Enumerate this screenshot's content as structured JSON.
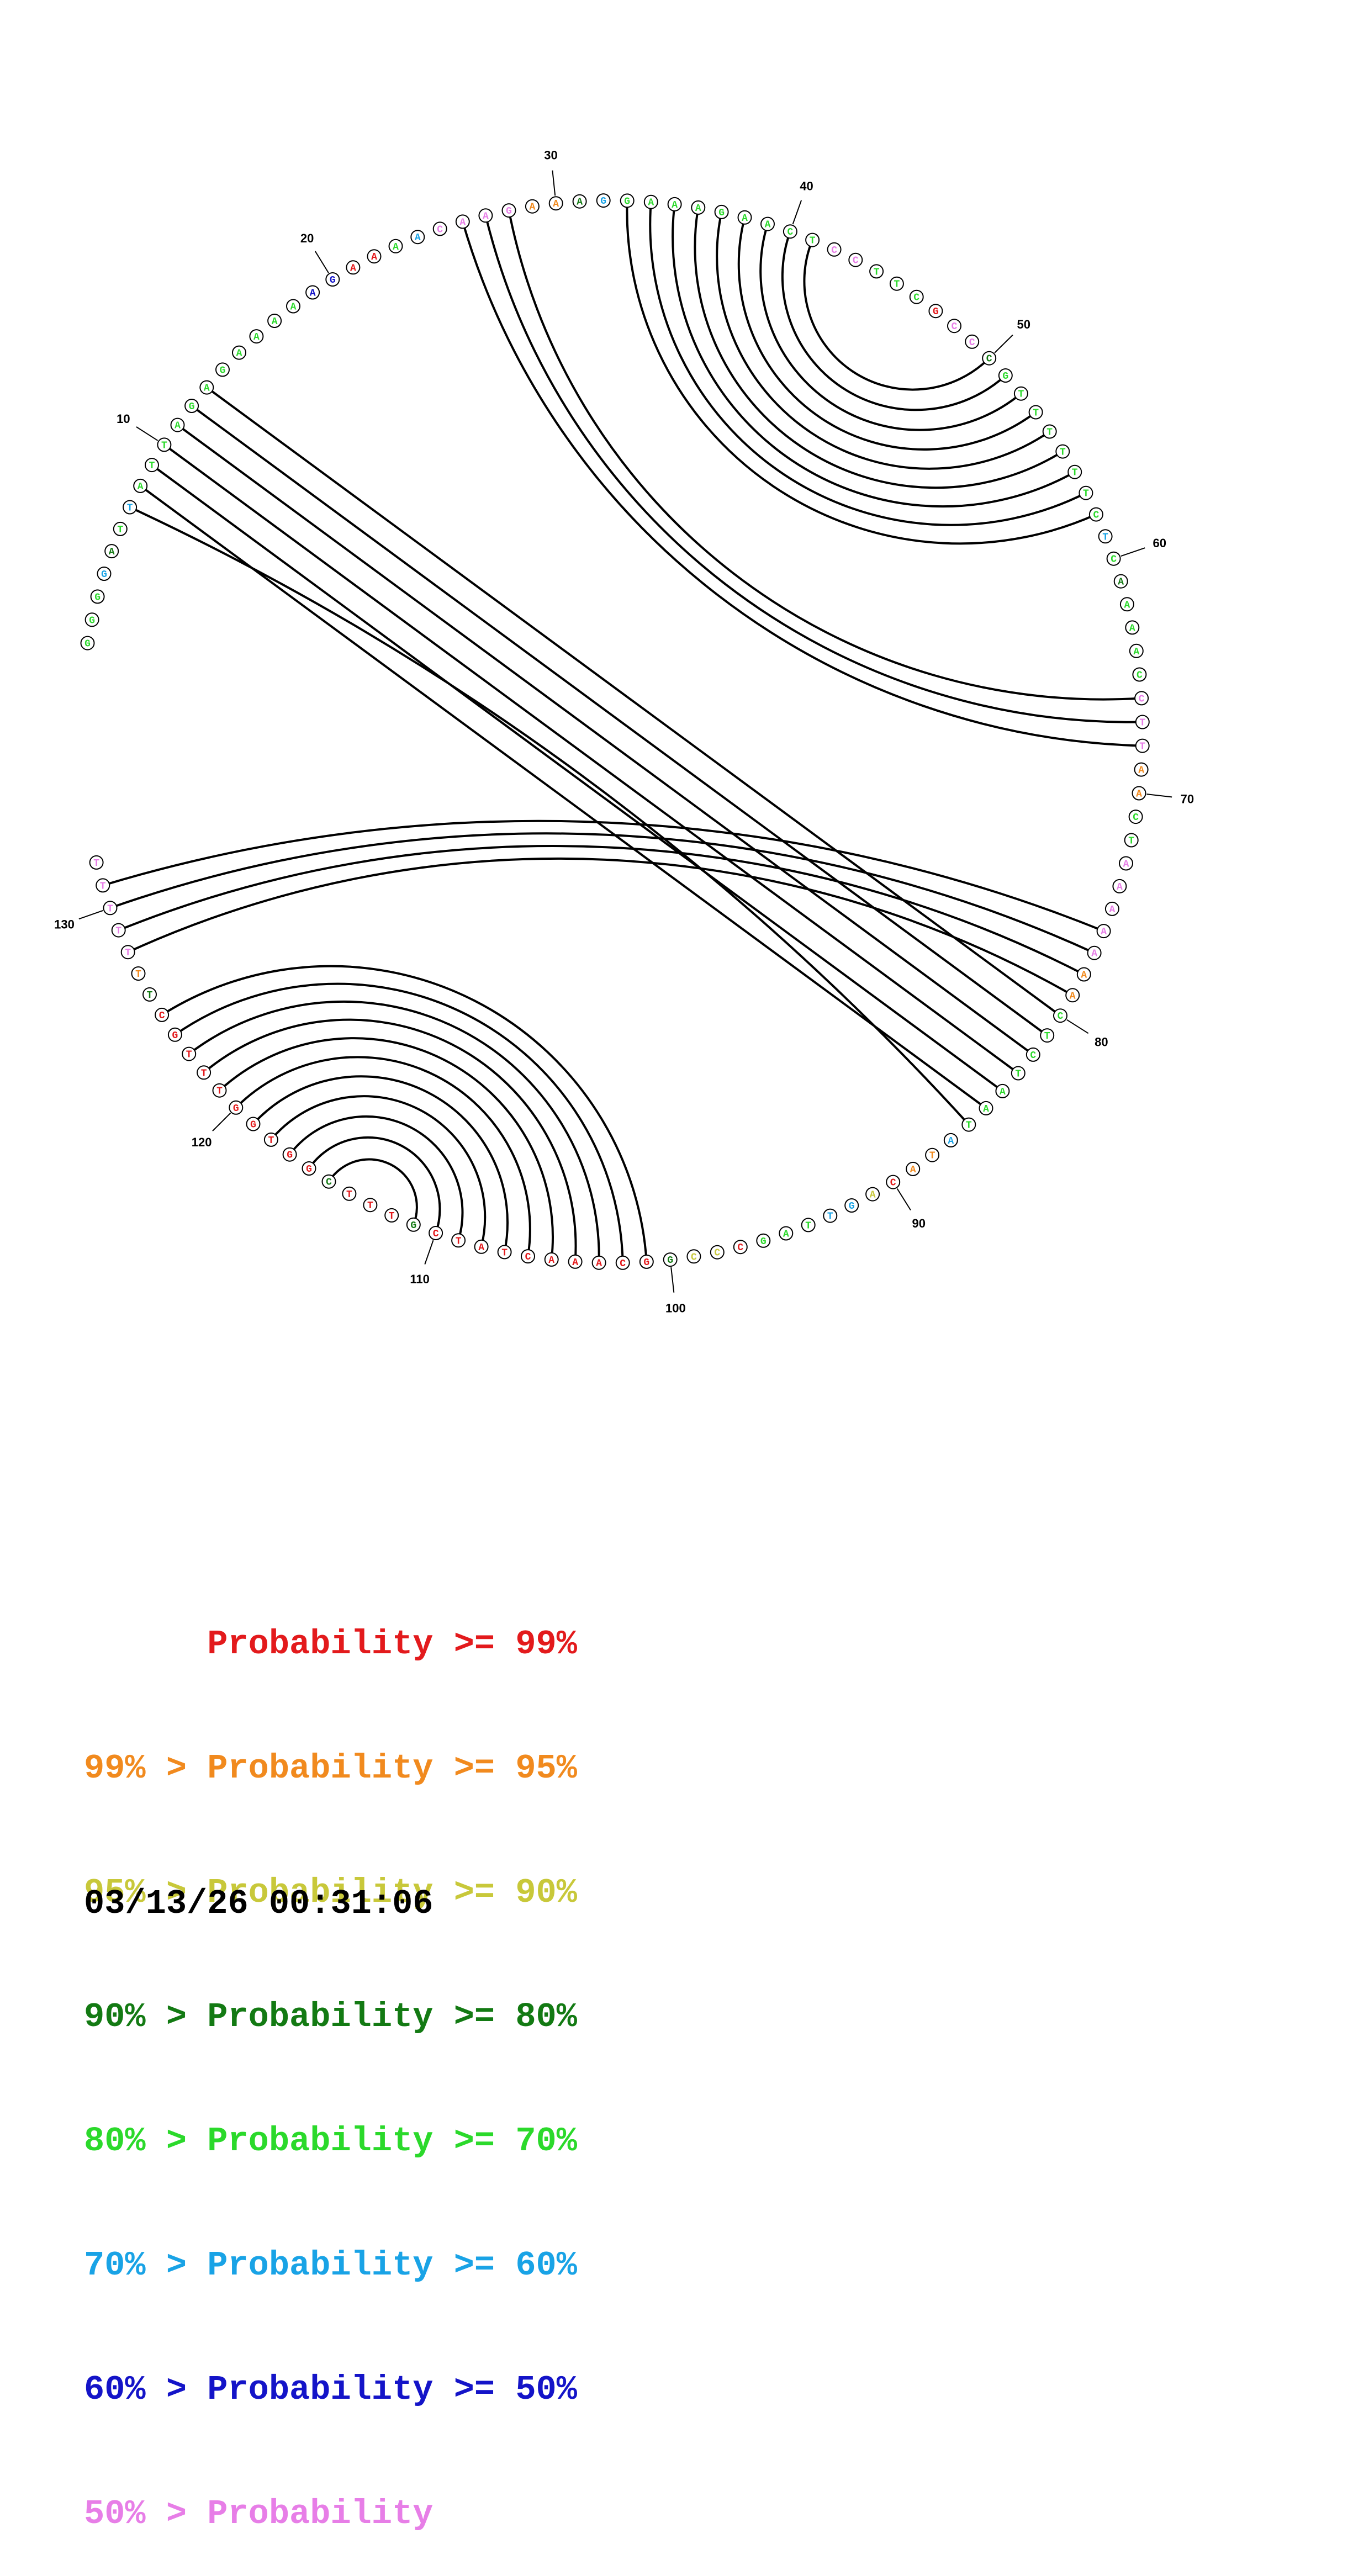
{
  "colors": {
    "red": "#e31a1c",
    "orange": "#f18a1e",
    "yellow": "#c8c83a",
    "darkgreen": "#137a13",
    "green": "#2bd92b",
    "cyan": "#19a3e6",
    "blue": "#1414c8",
    "pink": "#e77ee7"
  },
  "sequence": [
    {
      "b": "G",
      "c": "green"
    },
    {
      "b": "G",
      "c": "green"
    },
    {
      "b": "G",
      "c": "green"
    },
    {
      "b": "G",
      "c": "cyan"
    },
    {
      "b": "A",
      "c": "darkgreen"
    },
    {
      "b": "T",
      "c": "green"
    },
    {
      "b": "T",
      "c": "cyan"
    },
    {
      "b": "A",
      "c": "green"
    },
    {
      "b": "T",
      "c": "green"
    },
    {
      "b": "T",
      "c": "green"
    },
    {
      "b": "A",
      "c": "green"
    },
    {
      "b": "G",
      "c": "green"
    },
    {
      "b": "A",
      "c": "green"
    },
    {
      "b": "G",
      "c": "green"
    },
    {
      "b": "A",
      "c": "green"
    },
    {
      "b": "A",
      "c": "green"
    },
    {
      "b": "A",
      "c": "green"
    },
    {
      "b": "A",
      "c": "green"
    },
    {
      "b": "A",
      "c": "blue"
    },
    {
      "b": "G",
      "c": "blue"
    },
    {
      "b": "A",
      "c": "red"
    },
    {
      "b": "A",
      "c": "red"
    },
    {
      "b": "A",
      "c": "green"
    },
    {
      "b": "A",
      "c": "cyan"
    },
    {
      "b": "C",
      "c": "pink"
    },
    {
      "b": "A",
      "c": "pink"
    },
    {
      "b": "A",
      "c": "pink"
    },
    {
      "b": "G",
      "c": "pink"
    },
    {
      "b": "A",
      "c": "orange"
    },
    {
      "b": "A",
      "c": "orange"
    },
    {
      "b": "A",
      "c": "darkgreen"
    },
    {
      "b": "G",
      "c": "cyan"
    },
    {
      "b": "G",
      "c": "green"
    },
    {
      "b": "A",
      "c": "green"
    },
    {
      "b": "A",
      "c": "green"
    },
    {
      "b": "A",
      "c": "green"
    },
    {
      "b": "G",
      "c": "green"
    },
    {
      "b": "A",
      "c": "green"
    },
    {
      "b": "A",
      "c": "green"
    },
    {
      "b": "C",
      "c": "green"
    },
    {
      "b": "T",
      "c": "green"
    },
    {
      "b": "C",
      "c": "pink"
    },
    {
      "b": "C",
      "c": "pink"
    },
    {
      "b": "T",
      "c": "green"
    },
    {
      "b": "T",
      "c": "green"
    },
    {
      "b": "C",
      "c": "green"
    },
    {
      "b": "G",
      "c": "red"
    },
    {
      "b": "C",
      "c": "pink"
    },
    {
      "b": "C",
      "c": "pink"
    },
    {
      "b": "C",
      "c": "darkgreen"
    },
    {
      "b": "G",
      "c": "green"
    },
    {
      "b": "T",
      "c": "green"
    },
    {
      "b": "T",
      "c": "green"
    },
    {
      "b": "T",
      "c": "green"
    },
    {
      "b": "T",
      "c": "green"
    },
    {
      "b": "T",
      "c": "green"
    },
    {
      "b": "T",
      "c": "green"
    },
    {
      "b": "C",
      "c": "green"
    },
    {
      "b": "T",
      "c": "cyan"
    },
    {
      "b": "C",
      "c": "green"
    },
    {
      "b": "A",
      "c": "darkgreen"
    },
    {
      "b": "A",
      "c": "green"
    },
    {
      "b": "A",
      "c": "green"
    },
    {
      "b": "A",
      "c": "green"
    },
    {
      "b": "C",
      "c": "green"
    },
    {
      "b": "C",
      "c": "pink"
    },
    {
      "b": "T",
      "c": "pink"
    },
    {
      "b": "T",
      "c": "pink"
    },
    {
      "b": "A",
      "c": "orange"
    },
    {
      "b": "A",
      "c": "orange"
    },
    {
      "b": "C",
      "c": "green"
    },
    {
      "b": "T",
      "c": "green"
    },
    {
      "b": "A",
      "c": "pink"
    },
    {
      "b": "A",
      "c": "pink"
    },
    {
      "b": "A",
      "c": "pink"
    },
    {
      "b": "A",
      "c": "pink"
    },
    {
      "b": "A",
      "c": "pink"
    },
    {
      "b": "A",
      "c": "orange"
    },
    {
      "b": "A",
      "c": "orange"
    },
    {
      "b": "C",
      "c": "green"
    },
    {
      "b": "T",
      "c": "green"
    },
    {
      "b": "C",
      "c": "green"
    },
    {
      "b": "T",
      "c": "green"
    },
    {
      "b": "A",
      "c": "green"
    },
    {
      "b": "A",
      "c": "green"
    },
    {
      "b": "T",
      "c": "green"
    },
    {
      "b": "A",
      "c": "cyan"
    },
    {
      "b": "T",
      "c": "orange"
    },
    {
      "b": "A",
      "c": "orange"
    },
    {
      "b": "C",
      "c": "red"
    },
    {
      "b": "A",
      "c": "yellow"
    },
    {
      "b": "G",
      "c": "cyan"
    },
    {
      "b": "T",
      "c": "cyan"
    },
    {
      "b": "T",
      "c": "green"
    },
    {
      "b": "A",
      "c": "green"
    },
    {
      "b": "G",
      "c": "green"
    },
    {
      "b": "C",
      "c": "red"
    },
    {
      "b": "C",
      "c": "yellow"
    },
    {
      "b": "C",
      "c": "yellow"
    },
    {
      "b": "G",
      "c": "darkgreen"
    },
    {
      "b": "G",
      "c": "red"
    },
    {
      "b": "C",
      "c": "red"
    },
    {
      "b": "A",
      "c": "red"
    },
    {
      "b": "A",
      "c": "red"
    },
    {
      "b": "A",
      "c": "red"
    },
    {
      "b": "C",
      "c": "red"
    },
    {
      "b": "T",
      "c": "red"
    },
    {
      "b": "A",
      "c": "red"
    },
    {
      "b": "T",
      "c": "red"
    },
    {
      "b": "C",
      "c": "red"
    },
    {
      "b": "G",
      "c": "darkgreen"
    },
    {
      "b": "T",
      "c": "red"
    },
    {
      "b": "T",
      "c": "red"
    },
    {
      "b": "T",
      "c": "red"
    },
    {
      "b": "C",
      "c": "darkgreen"
    },
    {
      "b": "G",
      "c": "red"
    },
    {
      "b": "G",
      "c": "red"
    },
    {
      "b": "T",
      "c": "red"
    },
    {
      "b": "G",
      "c": "red"
    },
    {
      "b": "G",
      "c": "red"
    },
    {
      "b": "T",
      "c": "red"
    },
    {
      "b": "T",
      "c": "red"
    },
    {
      "b": "T",
      "c": "red"
    },
    {
      "b": "G",
      "c": "red"
    },
    {
      "b": "C",
      "c": "red"
    },
    {
      "b": "T",
      "c": "darkgreen"
    },
    {
      "b": "T",
      "c": "orange"
    },
    {
      "b": "T",
      "c": "pink"
    },
    {
      "b": "T",
      "c": "pink"
    },
    {
      "b": "T",
      "c": "pink"
    },
    {
      "b": "T",
      "c": "pink"
    },
    {
      "b": "T",
      "c": "pink"
    }
  ],
  "tick_labels": [
    "10",
    "20",
    "30",
    "40",
    "50",
    "60",
    "70",
    "80",
    "90",
    "100",
    "110",
    "120",
    "130"
  ],
  "pairs": [
    [
      7,
      86
    ],
    [
      8,
      85
    ],
    [
      9,
      84
    ],
    [
      10,
      83
    ],
    [
      11,
      82
    ],
    [
      12,
      81
    ],
    [
      13,
      80
    ],
    [
      26,
      68
    ],
    [
      27,
      67
    ],
    [
      28,
      66
    ],
    [
      33,
      58
    ],
    [
      34,
      57
    ],
    [
      35,
      56
    ],
    [
      36,
      55
    ],
    [
      37,
      54
    ],
    [
      38,
      53
    ],
    [
      39,
      52
    ],
    [
      40,
      51
    ],
    [
      41,
      50
    ],
    [
      101,
      125
    ],
    [
      102,
      124
    ],
    [
      103,
      123
    ],
    [
      104,
      122
    ],
    [
      105,
      121
    ],
    [
      106,
      120
    ],
    [
      107,
      119
    ],
    [
      108,
      118
    ],
    [
      109,
      117
    ],
    [
      110,
      116
    ],
    [
      111,
      115
    ],
    [
      76,
      131
    ],
    [
      77,
      130
    ],
    [
      78,
      129
    ],
    [
      79,
      128
    ]
  ],
  "legend": [
    {
      "text": "      Probability >= 99%",
      "color": "red"
    },
    {
      "text": "99% > Probability >= 95%",
      "color": "orange"
    },
    {
      "text": "95% > Probability >= 90%",
      "color": "yellow"
    },
    {
      "text": "90% > Probability >= 80%",
      "color": "darkgreen"
    },
    {
      "text": "80% > Probability >= 70%",
      "color": "green"
    },
    {
      "text": "70% > Probability >= 60%",
      "color": "cyan"
    },
    {
      "text": "60% > Probability >= 50%",
      "color": "blue"
    },
    {
      "text": "50% > Probability",
      "color": "pink"
    }
  ],
  "timestamp": "03/13/26 00:31:06"
}
